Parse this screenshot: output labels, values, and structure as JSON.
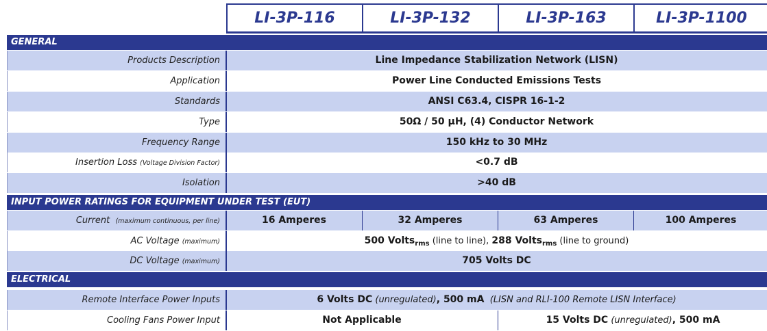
{
  "header": {
    "models": [
      "LI-3P-116",
      "LI-3P-132",
      "LI-3P-163",
      "LI-3P-1100"
    ]
  },
  "sections": [
    {
      "title": "GENERAL",
      "rows": [
        {
          "label": "Products Description",
          "value": "Line Impedance Stabilization Network (LISN)"
        },
        {
          "label": "Application",
          "value": "Power Line Conducted Emissions Tests"
        },
        {
          "label": "Standards",
          "value": "ANSI C63.4, CISPR 16-1-2"
        },
        {
          "label": "Type",
          "value": "50Ω / 50 µH, (4) Conductor Network"
        },
        {
          "label": "Frequency Range",
          "value": "150 kHz to 30 MHz"
        },
        {
          "label": "Insertion Loss",
          "label_note": "(Voltage Division Factor)",
          "value": "<0.7 dB"
        },
        {
          "label": "Isolation",
          "value": ">40 dB"
        }
      ]
    },
    {
      "title": "INPUT POWER RATINGS FOR EQUIPMENT UNDER TEST (EUT)",
      "rows": [
        {
          "label": "Current",
          "label_note": "(maximum continuous, per line)",
          "values": [
            "16 Amperes",
            "32 Amperes",
            "63 Amperes",
            "100 Amperes"
          ]
        },
        {
          "label": "AC Voltage",
          "label_note": "(maximum)",
          "value_parts": [
            "500 Volts",
            "rms",
            " (line to line), ",
            "288 Volts",
            "rms",
            " (line to ground)"
          ]
        },
        {
          "label": "DC Voltage",
          "label_note": "(maximum)",
          "value": "705 Volts DC"
        }
      ]
    },
    {
      "title": "ELECTRICAL",
      "rows": [
        {
          "label": "Remote Interface Power Inputs",
          "value_parts": [
            "6 Volts DC",
            " (unregulated)",
            ", 500 mA",
            "  (LISN and RLI-100 Remote LISN Interface)"
          ]
        },
        {
          "label": "Cooling Fans Power Input",
          "values": [
            "Not Applicable"
          ],
          "value_parts": [
            "15 Volts DC",
            " (unregulated)",
            ", 500 mA"
          ]
        }
      ]
    }
  ]
}
